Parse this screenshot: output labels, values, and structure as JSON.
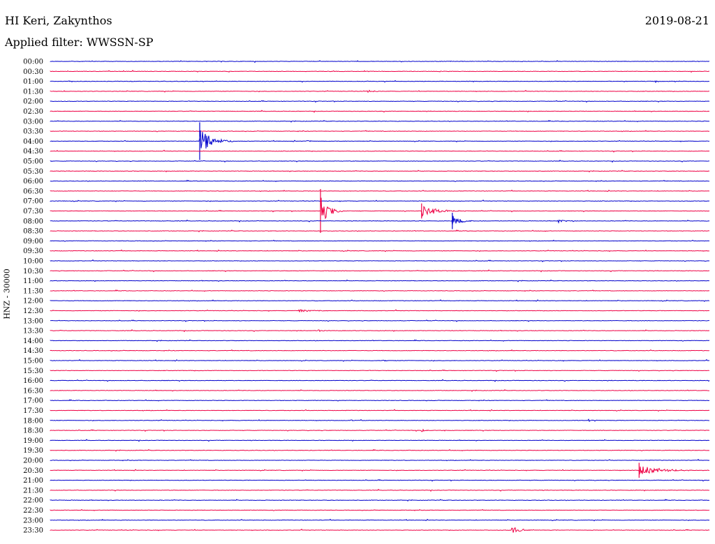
{
  "header": {
    "station": "HI Keri, Zakynthos",
    "date": "2019-08-21",
    "filter": "Applied filter: WWSSN-SP"
  },
  "chart_data": {
    "type": "line",
    "title": "HI Keri, Zakynthos",
    "subtitle": "Applied filter: WWSSN-SP",
    "ylabel": "HNZ - 30000",
    "xlabel": "",
    "colors": [
      "#0000cc",
      "#ee0044"
    ],
    "grid": false,
    "legend": "none",
    "rows": [
      "00:00",
      "00:30",
      "01:00",
      "01:30",
      "02:00",
      "02:30",
      "03:00",
      "03:30",
      "04:00",
      "04:30",
      "05:00",
      "05:30",
      "06:00",
      "06:30",
      "07:00",
      "07:30",
      "08:00",
      "08:30",
      "09:00",
      "09:30",
      "10:00",
      "10:30",
      "11:00",
      "11:30",
      "12:00",
      "12:30",
      "13:00",
      "13:30",
      "14:00",
      "14:30",
      "15:00",
      "15:30",
      "16:00",
      "16:30",
      "17:00",
      "17:30",
      "18:00",
      "18:30",
      "19:00",
      "19:30",
      "20:00",
      "20:30",
      "21:00",
      "21:30",
      "22:00",
      "22:30",
      "23:00",
      "23:30"
    ],
    "minutes_per_row": 30,
    "events": [
      {
        "row": "01:00",
        "minute": 27.5,
        "amplitude": 0.35,
        "duration": 0.4
      },
      {
        "row": "01:30",
        "minute": 14.4,
        "amplitude": 0.45,
        "duration": 0.6
      },
      {
        "row": "04:00",
        "minute": 6.8,
        "amplitude": 3.0,
        "duration": 1.5
      },
      {
        "row": "04:00",
        "minute": 11.6,
        "amplitude": 0.35,
        "duration": 0.5
      },
      {
        "row": "07:30",
        "minute": 12.3,
        "amplitude": 3.5,
        "duration": 1.0
      },
      {
        "row": "07:30",
        "minute": 16.9,
        "amplitude": 1.2,
        "duration": 2.0
      },
      {
        "row": "08:00",
        "minute": 18.3,
        "amplitude": 1.3,
        "duration": 1.0
      },
      {
        "row": "08:00",
        "minute": 23.1,
        "amplitude": 0.6,
        "duration": 0.6
      },
      {
        "row": "12:30",
        "minute": 11.3,
        "amplitude": 0.45,
        "duration": 1.5
      },
      {
        "row": "13:30",
        "minute": 12.2,
        "amplitude": 0.45,
        "duration": 0.4
      },
      {
        "row": "15:00",
        "minute": 15.1,
        "amplitude": 0.35,
        "duration": 0.4
      },
      {
        "row": "18:00",
        "minute": 13.6,
        "amplitude": 0.3,
        "duration": 0.4
      },
      {
        "row": "18:00",
        "minute": 24.5,
        "amplitude": 0.3,
        "duration": 0.5
      },
      {
        "row": "18:30",
        "minute": 16.9,
        "amplitude": 0.7,
        "duration": 0.4
      },
      {
        "row": "20:30",
        "minute": 26.8,
        "amplitude": 1.2,
        "duration": 2.5
      },
      {
        "row": "23:30",
        "minute": 21.0,
        "amplitude": 0.9,
        "duration": 1.0
      }
    ]
  }
}
